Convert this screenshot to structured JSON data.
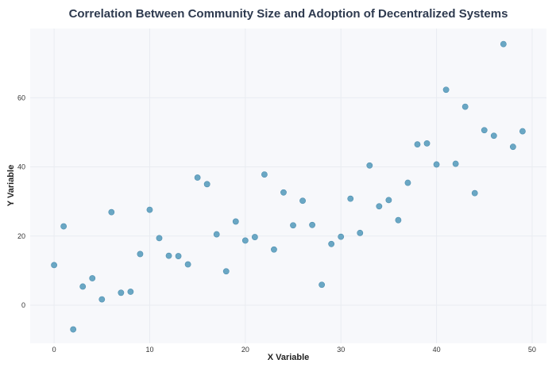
{
  "chart_data": {
    "type": "scatter",
    "title": "Correlation Between Community Size and Adoption of Decentralized Systems",
    "xlabel": "X Variable",
    "ylabel": "Y Variable",
    "xlim": [
      -2.5,
      51.5
    ],
    "ylim": [
      -11,
      80
    ],
    "xticks": [
      0,
      10,
      20,
      30,
      40,
      50
    ],
    "yticks": [
      0,
      20,
      40,
      60
    ],
    "grid": true,
    "legend": "none",
    "colors": {
      "point": "#6aa7c4",
      "plot_background": "#f7f8fb",
      "title": "#2e3a4f"
    },
    "series": [
      {
        "x": [
          0,
          1,
          2,
          3,
          4,
          5,
          6,
          7,
          8,
          9,
          10,
          11,
          12,
          13,
          14,
          15,
          16,
          17,
          18,
          19,
          20,
          21,
          22,
          23,
          24,
          25,
          26,
          27,
          28,
          29,
          30,
          31,
          32,
          33,
          34,
          35,
          36,
          37,
          38,
          39,
          40,
          41,
          42,
          43,
          44,
          45,
          46,
          47,
          48,
          49
        ],
        "y": [
          11.6,
          22.8,
          -7.0,
          5.4,
          7.8,
          1.7,
          26.9,
          3.6,
          3.9,
          14.8,
          27.6,
          19.4,
          14.3,
          14.2,
          11.8,
          36.9,
          35.0,
          20.5,
          9.8,
          24.2,
          18.7,
          19.7,
          37.8,
          16.1,
          32.6,
          23.1,
          30.2,
          23.2,
          5.9,
          17.7,
          19.8,
          30.8,
          20.9,
          40.4,
          28.6,
          30.4,
          24.6,
          35.4,
          46.5,
          46.8,
          40.7,
          62.3,
          40.9,
          57.4,
          32.4,
          50.6,
          49.0,
          75.5,
          45.8,
          50.3
        ]
      }
    ]
  }
}
